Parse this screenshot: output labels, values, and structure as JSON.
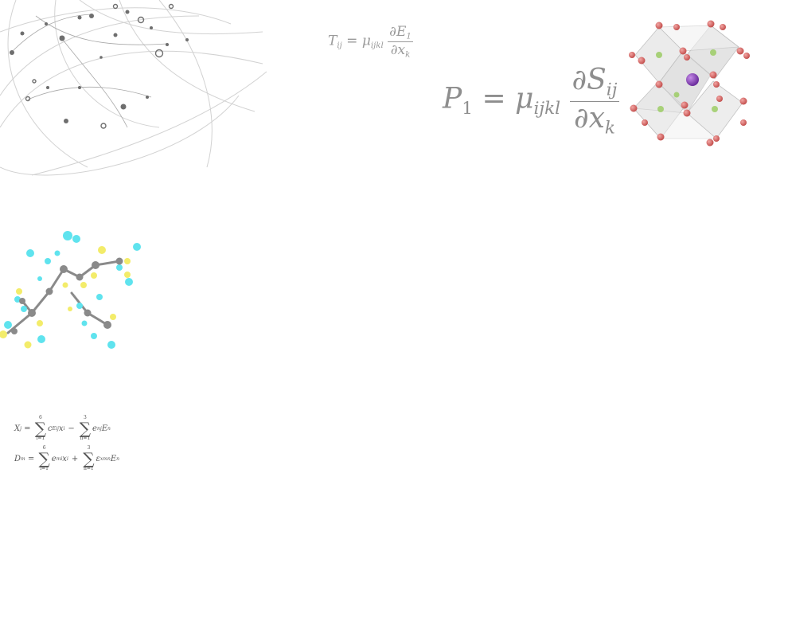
{
  "formula_t": {
    "lhs": "T",
    "lhs_sub": "ij",
    "eq": "=",
    "coef": "μ",
    "coef_sub": "ijkl",
    "num": "∂E",
    "num_sub": "1",
    "den": "∂x",
    "den_sub": "k"
  },
  "formula_p": {
    "lhs": "P",
    "lhs_sub": "1",
    "eq": "=",
    "coef": "μ",
    "coef_sub": "ijkl",
    "num": "∂S",
    "num_sub": "ij",
    "den": "∂x",
    "den_sub": "k"
  },
  "equations": {
    "row1": {
      "lhs": "X",
      "lhs_sub": "j",
      "sum1_upper": "6",
      "sum1_lower": "i=1",
      "term1": "c",
      "term1_sub": "ij",
      "term1_sup": "E",
      "term1_var": "x",
      "term1_var_sub": "i",
      "op": "−",
      "sum2_upper": "3",
      "sum2_lower": "n=1",
      "term2": "e",
      "term2_sub": "nj",
      "term2_var": "E",
      "term2_var_sub": "n"
    },
    "row2": {
      "lhs": "D",
      "lhs_sub": "m",
      "sum1_upper": "6",
      "sum1_lower": "i=1",
      "term1": "e",
      "term1_sub": "mi",
      "term1_var": "x",
      "term1_var_sub": "i",
      "op": "+",
      "sum2_upper": "3",
      "sum2_lower": "n=1",
      "term2": "ε",
      "term2_sub": "mn",
      "term2_sup": "x",
      "term2_var": "E",
      "term2_var_sub": "n"
    }
  },
  "colors": {
    "network_line": "#c8c8c8",
    "network_node": "#6e6e6e",
    "octahedron": "#dcdcdc",
    "oxygen": "#d9615f",
    "center_atom": "#8e44c4",
    "inner_atom": "#9ccc65",
    "carbon": "#8a8a8a",
    "fluorine": "#5fe3ee",
    "sulfur": "#f3ec6a"
  },
  "illustrations": {
    "top_left": "network-sphere-graphic",
    "top_right": "perovskite-crystal-structure",
    "middle_left": "helical-molecule-model"
  }
}
